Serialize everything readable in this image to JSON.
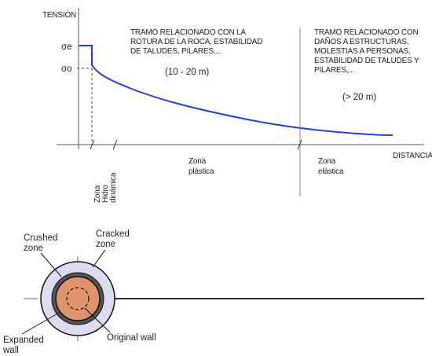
{
  "chart": {
    "y_axis_label": "TENSIÓN",
    "x_axis_label": "DISTANCIA",
    "sigma_e": "σe",
    "sigma_o": "σo",
    "zone1_text": [
      "TRAMO RELACIONADO CON LA",
      "ROTURA DE LA ROCA, ESTABILIDAD",
      "DE TALUDES, PILARES,..."
    ],
    "zone1_range": "(10 - 20 m)",
    "zone2_text": [
      "TRAMO RELACIONADO CON",
      "DAÑOS A ESTRUCTURAS,",
      "MOLESTIAS A PERSONAS,",
      "ESTABILIDAD DE TALUDES Y",
      "PILARES,..."
    ],
    "zone2_range": "(> 20 m)",
    "zona_hidro_label": [
      "Zona",
      "Hidro",
      "dinámica"
    ],
    "zona_plastica_label": [
      "Zona",
      "plástica"
    ],
    "zona_elastica_label": [
      "Zona",
      "elástica"
    ]
  },
  "hole_diagram": {
    "crushed_zone": [
      "Crushed",
      "zone"
    ],
    "cracked_zone": [
      "Cracked",
      "zone"
    ],
    "expanded_wall": [
      "Expanded",
      "wall"
    ],
    "original_wall": "Original wall"
  },
  "colors": {
    "curve": "#1f3fe0",
    "outer_ring": "#dcdcf0",
    "inner_ring": "#555555",
    "rock": "#e0926a"
  }
}
